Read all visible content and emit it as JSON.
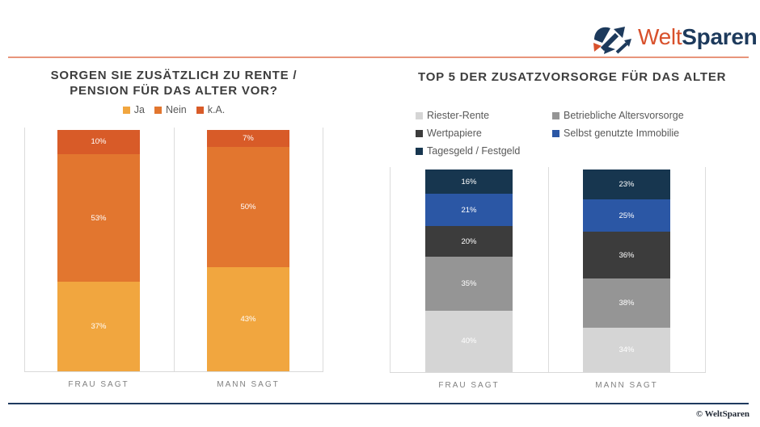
{
  "brand": {
    "logo_part1": "Welt",
    "logo_part2": "Sparen",
    "logo_orange": "#D8512C",
    "logo_navy": "#1D3A5C",
    "top_rule_color": "#E8957B",
    "bottom_rule_color": "#1F3A5F",
    "copyright": "© WeltSparen"
  },
  "chart_data": [
    {
      "type": "bar",
      "stacked": true,
      "normalized": true,
      "title": "SORGEN SIE ZUSÄTZLICH ZU RENTE / PENSION FÜR DAS ALTER VOR?",
      "title_lines": [
        "SORGEN SIE ZUSÄTZLICH ZU RENTE /",
        "PENSION FÜR DAS ALTER VOR?"
      ],
      "legend_position": "top-center",
      "categories": [
        "FRAU SAGT",
        "MANN SAGT"
      ],
      "series": [
        {
          "name": "Ja",
          "color": "#F1A63F",
          "values": [
            37,
            43
          ]
        },
        {
          "name": "Nein",
          "color": "#E2762F",
          "values": [
            53,
            50
          ]
        },
        {
          "name": "k.A.",
          "color": "#D85B28",
          "values": [
            10,
            7
          ]
        }
      ],
      "value_suffix": "%",
      "ylim": [
        0,
        100
      ],
      "grid": "vertical-separators-only"
    },
    {
      "type": "bar",
      "stacked": true,
      "normalized": true,
      "title": "TOP 5 DER ZUSATZVORSORGE FÜR DAS ALTER",
      "legend_position": "top-left-two-columns",
      "categories": [
        "FRAU SAGT",
        "MANN SAGT"
      ],
      "series": [
        {
          "name": "Riester-Rente",
          "color": "#D5D5D5",
          "values": [
            40,
            34
          ]
        },
        {
          "name": "Betriebliche Altersvorsorge",
          "color": "#959595",
          "values": [
            35,
            38
          ]
        },
        {
          "name": "Wertpapiere",
          "color": "#3C3C3C",
          "values": [
            20,
            36
          ]
        },
        {
          "name": "Selbst genutzte Immobilie",
          "color": "#2B57A5",
          "values": [
            21,
            25
          ]
        },
        {
          "name": "Tagesgeld / Festgeld",
          "color": "#17364F",
          "values": [
            16,
            23
          ]
        }
      ],
      "value_suffix": "%",
      "grid": "vertical-separators-only"
    }
  ]
}
